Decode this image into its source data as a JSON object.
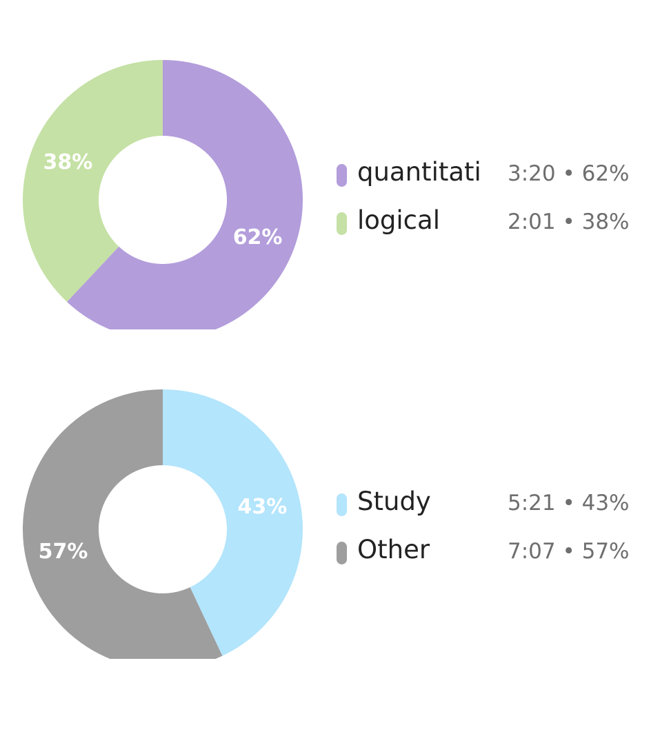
{
  "chart_data": [
    {
      "type": "pie",
      "categories": [
        "quantitati",
        "logical"
      ],
      "values": [
        62,
        38
      ],
      "slice_labels": [
        "62%",
        "38%"
      ],
      "colors": [
        "#b39ddb",
        "#c5e1a5"
      ],
      "legend": [
        {
          "name": "quantitati",
          "value_text": "3:20 • 62%"
        },
        {
          "name": "logical",
          "value_text": "2:01 • 38%"
        }
      ]
    },
    {
      "type": "pie",
      "categories": [
        "Study",
        "Other"
      ],
      "values": [
        43,
        57
      ],
      "slice_labels": [
        "43%",
        "57%"
      ],
      "colors": [
        "#b3e5fc",
        "#9e9e9e"
      ],
      "legend": [
        {
          "name": "Study",
          "value_text": "5:21 • 43%"
        },
        {
          "name": "Other",
          "value_text": "7:07 • 57%"
        }
      ]
    }
  ]
}
